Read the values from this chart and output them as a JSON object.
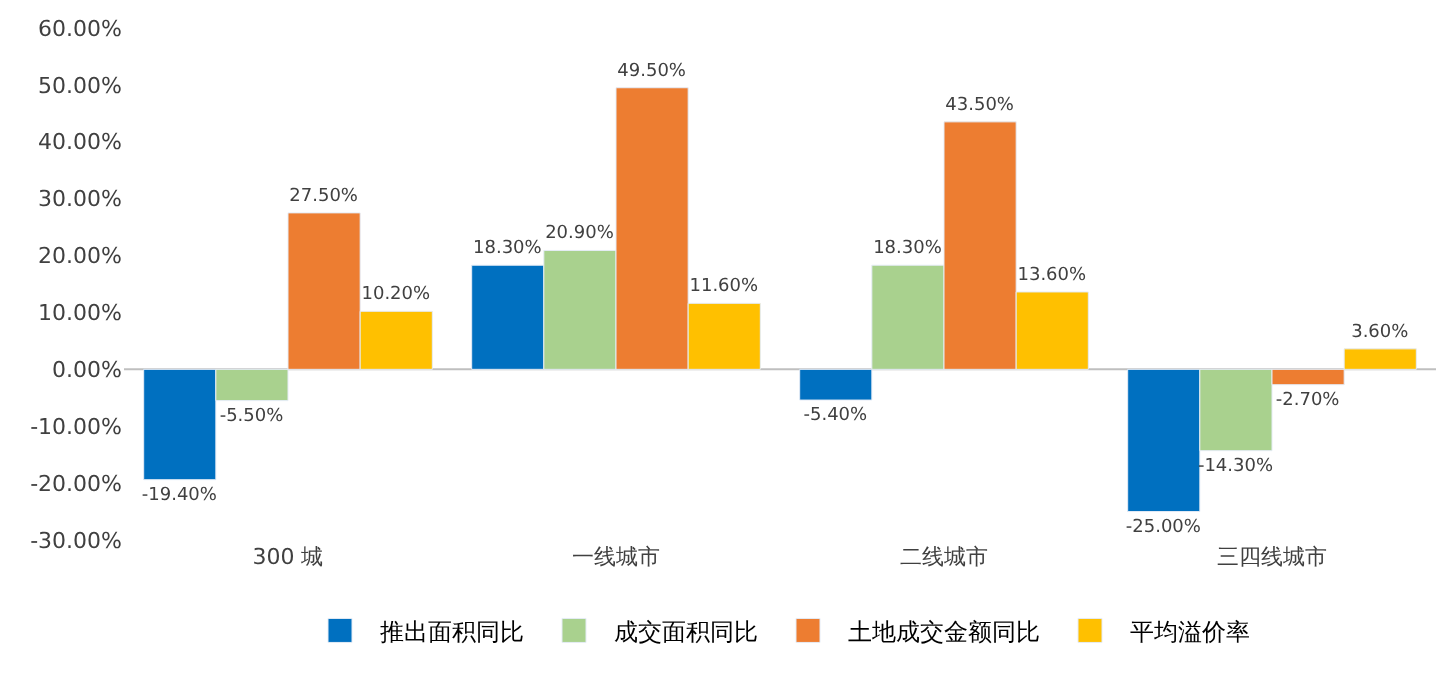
{
  "chart_data": {
    "type": "bar",
    "categories": [
      "300 城",
      "一线城市",
      "二线城市",
      "三四线城市"
    ],
    "series": [
      {
        "name": "推出面积同比",
        "color": "#0070c0",
        "values": [
          -19.4,
          18.3,
          -5.4,
          -25.0
        ],
        "value_labels": [
          "-19.40%",
          "18.30%",
          "-5.40%",
          "-25.00%"
        ]
      },
      {
        "name": "成交面积同比",
        "color": "#a9d18e",
        "values": [
          -5.5,
          20.9,
          18.3,
          -14.3
        ],
        "value_labels": [
          "-5.50%",
          "20.90%",
          "18.30%",
          "-14.30%"
        ]
      },
      {
        "name": "土地成交金额同比",
        "color": "#ed7d31",
        "values": [
          27.5,
          49.5,
          43.5,
          -2.7
        ],
        "value_labels": [
          "27.50%",
          "49.50%",
          "43.50%",
          "-2.70%"
        ]
      },
      {
        "name": "平均溢价率",
        "color": "#ffc000",
        "values": [
          10.2,
          11.6,
          13.6,
          3.6
        ],
        "value_labels": [
          "10.20%",
          "11.60%",
          "13.60%",
          "3.60%"
        ]
      }
    ],
    "ylim": [
      -30,
      60
    ],
    "yticks": [
      {
        "value": -30,
        "label": "-30.00%"
      },
      {
        "value": -20,
        "label": "-20.00%"
      },
      {
        "value": -10,
        "label": "-10.00%"
      },
      {
        "value": 0,
        "label": "0.00%"
      },
      {
        "value": 10,
        "label": "10.00%"
      },
      {
        "value": 20,
        "label": "20.00%"
      },
      {
        "value": 30,
        "label": "30.00%"
      },
      {
        "value": 40,
        "label": "40.00%"
      },
      {
        "value": 50,
        "label": "50.00%"
      },
      {
        "value": 60,
        "label": "60.00%"
      }
    ],
    "ref_lines": [
      {
        "axis": "y",
        "value": 0,
        "color": "#bfbfbf"
      }
    ],
    "grid": false,
    "legend": "bottom"
  }
}
